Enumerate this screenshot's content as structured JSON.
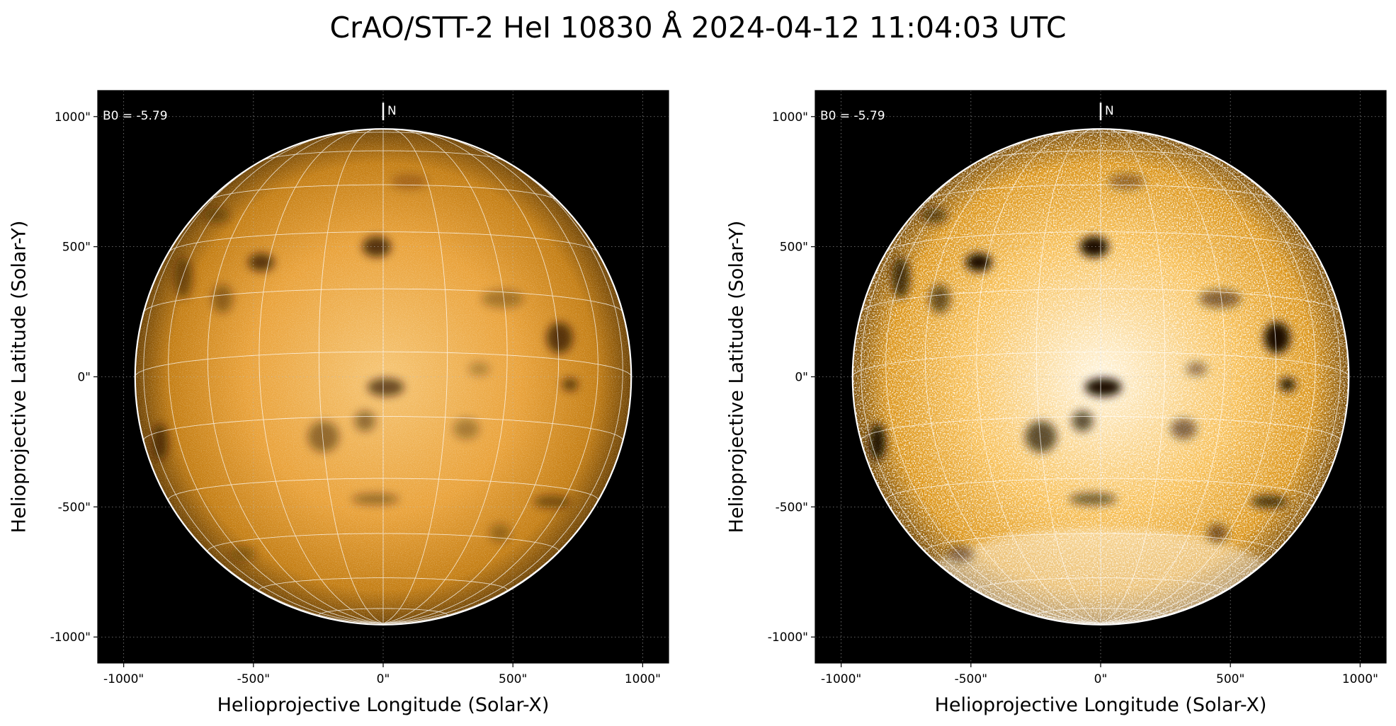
{
  "title": "CrAO/STT-2 HeI 10830 Å 2024-04-12 11:04:03 UTC",
  "colors": {
    "background": "#000000",
    "limb": "#ffffff",
    "grid": "#ffffff",
    "disk_left": [
      "#f6c574",
      "#e9a23a",
      "#c47e14",
      "#6e4406"
    ],
    "disk_right": [
      "#fff4dc",
      "#f7bf56",
      "#db9418",
      "#7a4c05"
    ]
  },
  "panels": [
    {
      "id": "left",
      "annotation": "B0 = -5.79",
      "north_label": "N",
      "x_axis_label": "Helioprojective Longitude (Solar-X)",
      "y_axis_label": "Helioprojective Latitude (Solar-Y)",
      "x_ticks": [
        {
          "value": -1000,
          "label": "-1000\""
        },
        {
          "value": -500,
          "label": "-500\""
        },
        {
          "value": 0,
          "label": "0\""
        },
        {
          "value": 500,
          "label": "500\""
        },
        {
          "value": 1000,
          "label": "1000\""
        }
      ],
      "y_ticks": [
        {
          "value": 1000,
          "label": "1000\""
        },
        {
          "value": 500,
          "label": "500\""
        },
        {
          "value": 0,
          "label": "0\""
        },
        {
          "value": -500,
          "label": "-500\""
        },
        {
          "value": -1000,
          "label": "-1000\""
        }
      ],
      "x_range": [
        -1100,
        1100
      ],
      "y_range": [
        -1100,
        1100
      ],
      "solar_radius_arcsec": 956,
      "b0_deg": -5.79,
      "heliographic_grid_step_deg": 15,
      "processing": "standard"
    },
    {
      "id": "right",
      "annotation": "B0 = -5.79",
      "north_label": "N",
      "x_axis_label": "Helioprojective Longitude (Solar-X)",
      "y_axis_label": "Helioprojective Latitude (Solar-Y)",
      "x_ticks": [
        {
          "value": -1000,
          "label": "-1000\""
        },
        {
          "value": -500,
          "label": "-500\""
        },
        {
          "value": 0,
          "label": "0\""
        },
        {
          "value": 500,
          "label": "500\""
        },
        {
          "value": 1000,
          "label": "1000\""
        }
      ],
      "y_ticks": [
        {
          "value": 1000,
          "label": "1000\""
        },
        {
          "value": 500,
          "label": "500\""
        },
        {
          "value": 0,
          "label": "0\""
        },
        {
          "value": -500,
          "label": "-500\""
        },
        {
          "value": -1000,
          "label": "-1000\""
        }
      ],
      "x_range": [
        -1100,
        1100
      ],
      "y_range": [
        -1100,
        1100
      ],
      "solar_radius_arcsec": 956,
      "b0_deg": -5.79,
      "heliographic_grid_step_deg": 15,
      "processing": "contrast-enhanced"
    }
  ],
  "dark_features": [
    {
      "x": -25,
      "y": 500,
      "rx": 55,
      "ry": 40,
      "strength": 0.9
    },
    {
      "x": -470,
      "y": 440,
      "rx": 50,
      "ry": 35,
      "strength": 0.85
    },
    {
      "x": -620,
      "y": 300,
      "rx": 40,
      "ry": 55,
      "strength": 0.5
    },
    {
      "x": -770,
      "y": 380,
      "rx": 35,
      "ry": 80,
      "strength": 0.6
    },
    {
      "x": -640,
      "y": 620,
      "rx": 50,
      "ry": 30,
      "strength": 0.45
    },
    {
      "x": 680,
      "y": 150,
      "rx": 50,
      "ry": 60,
      "strength": 0.85
    },
    {
      "x": 720,
      "y": -30,
      "rx": 30,
      "ry": 25,
      "strength": 0.8
    },
    {
      "x": 460,
      "y": 300,
      "rx": 80,
      "ry": 35,
      "strength": 0.4
    },
    {
      "x": 10,
      "y": -40,
      "rx": 70,
      "ry": 35,
      "strength": 0.8
    },
    {
      "x": -70,
      "y": -170,
      "rx": 40,
      "ry": 40,
      "strength": 0.55
    },
    {
      "x": -230,
      "y": -230,
      "rx": 60,
      "ry": 60,
      "strength": 0.55
    },
    {
      "x": -860,
      "y": -250,
      "rx": 30,
      "ry": 70,
      "strength": 0.75
    },
    {
      "x": 650,
      "y": -480,
      "rx": 70,
      "ry": 25,
      "strength": 0.6
    },
    {
      "x": -30,
      "y": -470,
      "rx": 90,
      "ry": 22,
      "strength": 0.5
    },
    {
      "x": 450,
      "y": -600,
      "rx": 40,
      "ry": 35,
      "strength": 0.4
    },
    {
      "x": 320,
      "y": -200,
      "rx": 50,
      "ry": 40,
      "strength": 0.4
    },
    {
      "x": 370,
      "y": 30,
      "rx": 40,
      "ry": 25,
      "strength": 0.35
    },
    {
      "x": 100,
      "y": 750,
      "rx": 70,
      "ry": 30,
      "strength": 0.3
    },
    {
      "x": -540,
      "y": -680,
      "rx": 50,
      "ry": 30,
      "strength": 0.35
    }
  ]
}
